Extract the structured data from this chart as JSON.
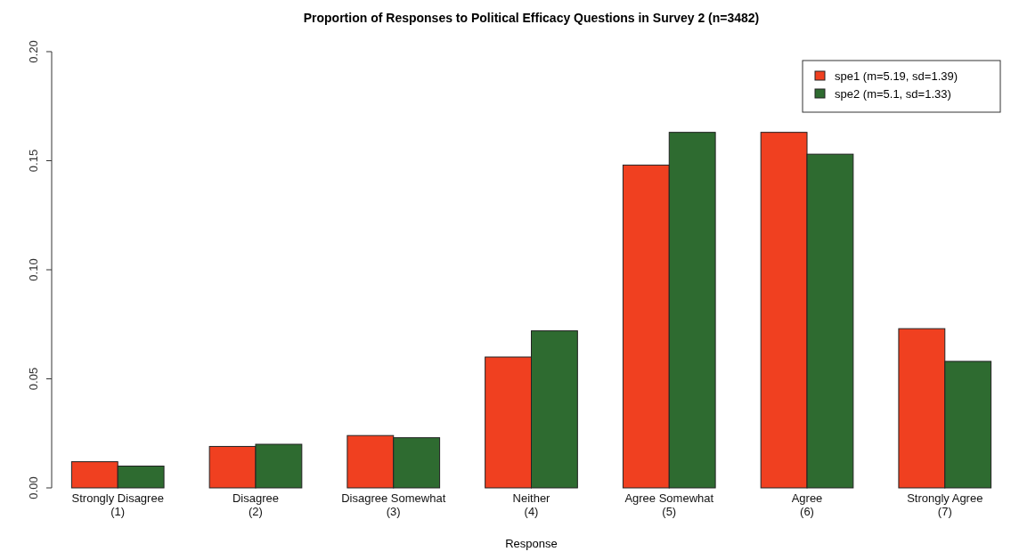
{
  "chart_data": {
    "type": "bar",
    "title": "Proportion of Responses to Political Efficacy Questions in Survey 2 (n=3482)",
    "xlabel": "Response",
    "categories": [
      "Strongly Disagree\n(1)",
      "Disagree\n(2)",
      "Disagree Somewhat\n(3)",
      "Neither\n(4)",
      "Agree Somewhat\n(5)",
      "Agree\n(6)",
      "Strongly Agree\n(7)"
    ],
    "series": [
      {
        "name": "spe1 (m=5.19, sd=1.39)",
        "color": "#f04020",
        "values": [
          0.012,
          0.019,
          0.024,
          0.06,
          0.148,
          0.163,
          0.073
        ]
      },
      {
        "name": "spe2 (m=5.1, sd=1.33)",
        "color": "#2e6b30",
        "values": [
          0.01,
          0.02,
          0.023,
          0.072,
          0.163,
          0.153,
          0.058
        ]
      }
    ],
    "ylim": [
      0,
      0.2
    ],
    "yticks": [
      {
        "value": 0,
        "label": "0.00"
      },
      {
        "value": 0.05,
        "label": "0.05"
      },
      {
        "value": 0.1,
        "label": "0.10"
      },
      {
        "value": 0.15,
        "label": "0.15"
      },
      {
        "value": 0.2,
        "label": "0.20"
      }
    ],
    "grid": false,
    "legend": "top right"
  }
}
